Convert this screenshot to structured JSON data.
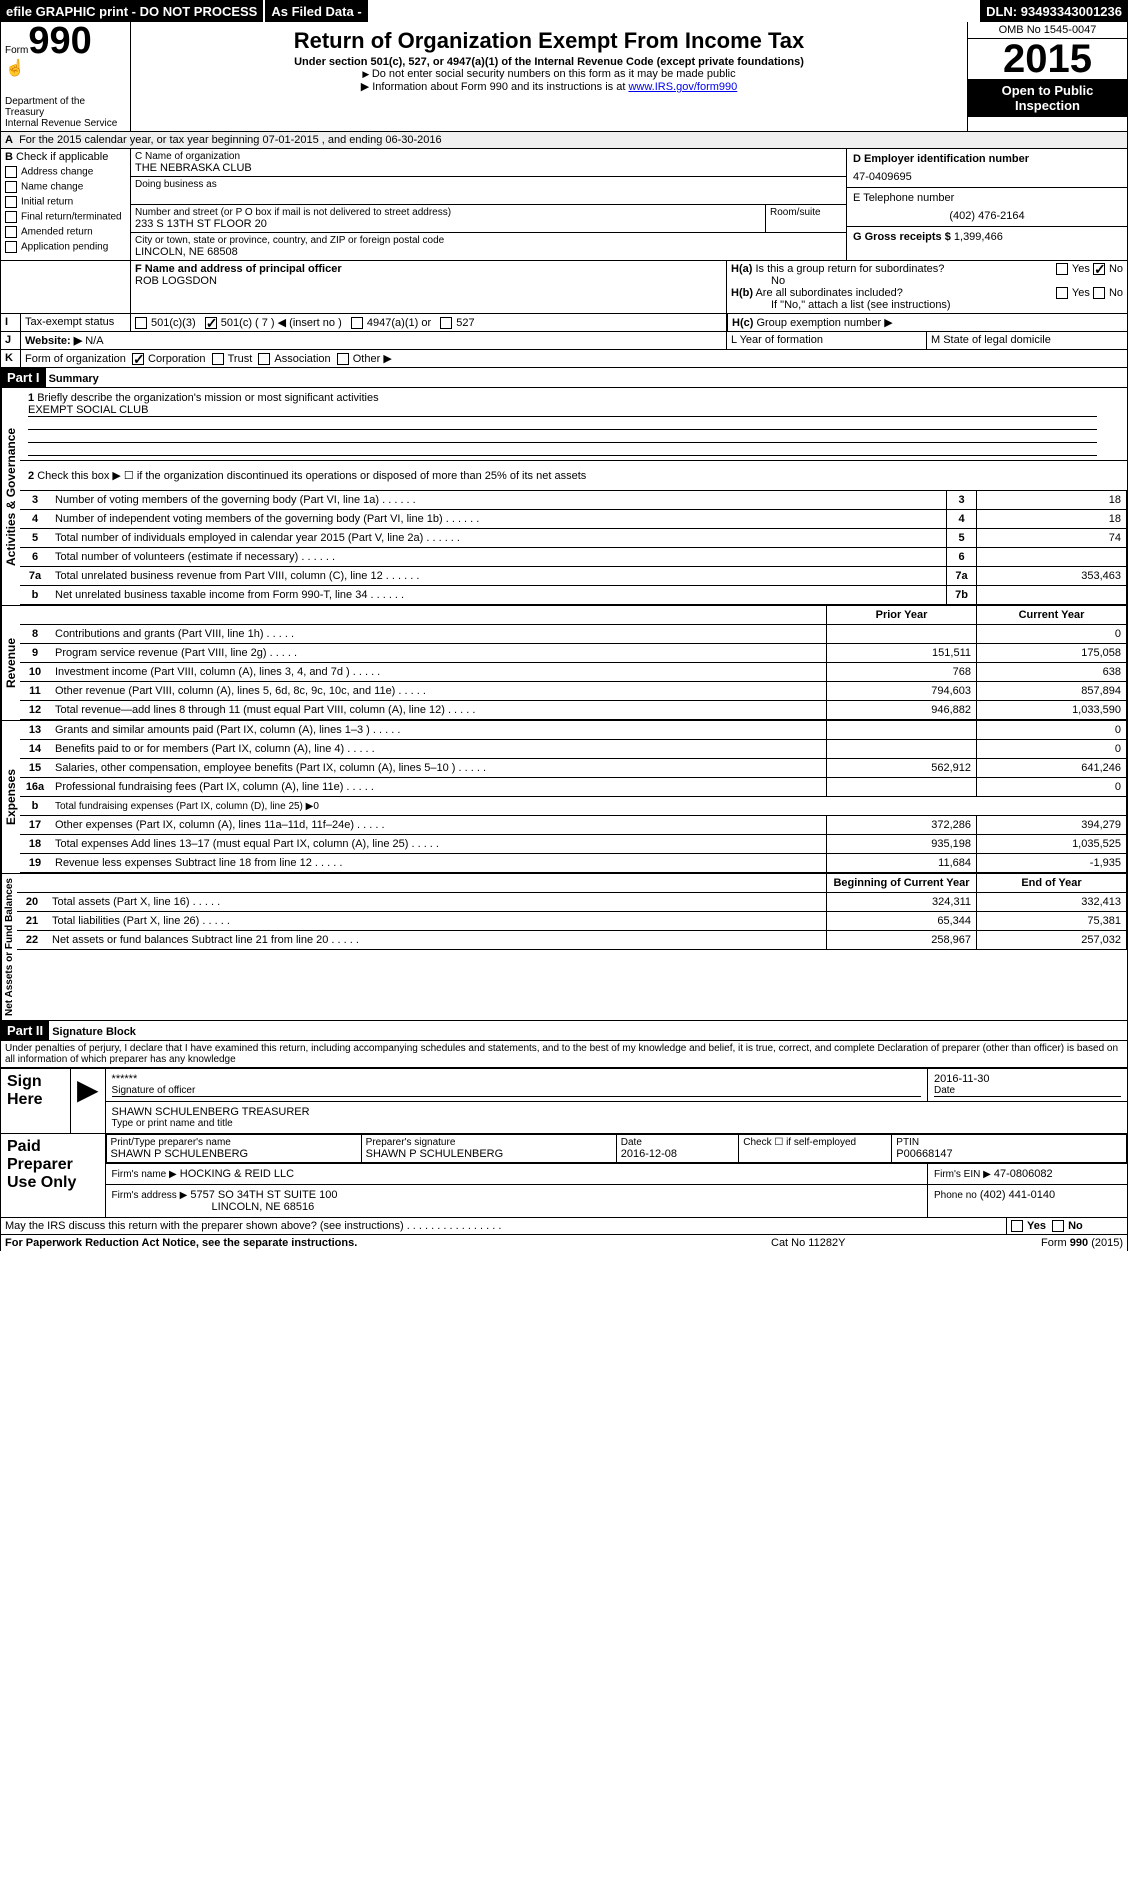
{
  "topbar": {
    "efile": "efile GRAPHIC print - DO NOT PROCESS",
    "asfiled": "As Filed Data -",
    "dln_label": "DLN:",
    "dln": "93493343001236"
  },
  "header": {
    "form_label": "Form",
    "form_no": "990",
    "dept": "Department of the Treasury",
    "irs": "Internal Revenue Service",
    "title": "Return of Organization Exempt From Income Tax",
    "subtitle": "Under section 501(c), 527, or 4947(a)(1) of the Internal Revenue Code (except private foundations)",
    "note1": "Do not enter social security numbers on this form as it may be made public",
    "note2_pre": "Information about Form 990 and its instructions is at ",
    "note2_link": "www.IRS.gov/form990",
    "omb": "OMB No 1545-0047",
    "year": "2015",
    "open": "Open to Public Inspection"
  },
  "a": {
    "line": "For the 2015 calendar year, or tax year beginning 07-01-2015   , and ending 06-30-2016"
  },
  "b": {
    "label": "Check if applicable",
    "opts": [
      "Address change",
      "Name change",
      "Initial return",
      "Final return/terminated",
      "Amended return",
      "Application pending"
    ]
  },
  "c": {
    "name_label": "C  Name of organization",
    "name": "THE NEBRASKA CLUB",
    "dba_label": "Doing business as",
    "dba": "",
    "addr_label": "Number and street (or P O box if mail is not delivered to street address)",
    "room_label": "Room/suite",
    "addr": "233 S 13TH ST FLOOR 20",
    "city_label": "City or town, state or province, country, and ZIP or foreign postal code",
    "city": "LINCOLN, NE  68508"
  },
  "d": {
    "label": "D Employer identification number",
    "val": "47-0409695"
  },
  "e": {
    "label": "E Telephone number",
    "val": "(402) 476-2164"
  },
  "g": {
    "label": "G Gross receipts $",
    "val": "1,399,466"
  },
  "f": {
    "label": "F  Name and address of principal officer",
    "val": "ROB LOGSDON"
  },
  "h": {
    "a": "Is this a group return for subordinates?",
    "b": "Are all subordinates included?",
    "bnote": "If \"No,\" attach a list (see instructions)",
    "c": "Group exemption number ▶",
    "yes": "Yes",
    "no": "No",
    "ans_a": "No"
  },
  "i": {
    "label": "Tax-exempt status",
    "opts": [
      "501(c)(3)",
      "501(c) ( 7 ) ◀ (insert no )",
      "4947(a)(1) or",
      "527"
    ],
    "checked": 1
  },
  "j": {
    "label": "Website: ▶",
    "val": "N/A"
  },
  "k": {
    "label": "Form of organization",
    "opts": [
      "Corporation",
      "Trust",
      "Association",
      "Other ▶"
    ],
    "checked": 0
  },
  "l": {
    "label": "L Year of formation"
  },
  "m": {
    "label": "M State of legal domicile"
  },
  "part1": {
    "title": "Part I",
    "sub": "Summary",
    "q1": "Briefly describe the organization's mission or most significant activities",
    "q1v": "EXEMPT SOCIAL CLUB",
    "q2": "Check this box ▶ ☐ if the organization discontinued its operations or disposed of more than 25% of its net assets",
    "rows_gov": [
      {
        "n": "3",
        "t": "Number of voting members of the governing body (Part VI, line 1a)",
        "k": "3",
        "v": "18"
      },
      {
        "n": "4",
        "t": "Number of independent voting members of the governing body (Part VI, line 1b)",
        "k": "4",
        "v": "18"
      },
      {
        "n": "5",
        "t": "Total number of individuals employed in calendar year 2015 (Part V, line 2a)",
        "k": "5",
        "v": "74"
      },
      {
        "n": "6",
        "t": "Total number of volunteers (estimate if necessary)",
        "k": "6",
        "v": ""
      },
      {
        "n": "7a",
        "t": "Total unrelated business revenue from Part VIII, column (C), line 12",
        "k": "7a",
        "v": "353,463"
      },
      {
        "n": "b",
        "t": "Net unrelated business taxable income from Form 990-T, line 34",
        "k": "7b",
        "v": ""
      }
    ],
    "hdr_prior": "Prior Year",
    "hdr_curr": "Current Year",
    "rows_rev": [
      {
        "n": "8",
        "t": "Contributions and grants (Part VIII, line 1h)",
        "p": "",
        "c": "0"
      },
      {
        "n": "9",
        "t": "Program service revenue (Part VIII, line 2g)",
        "p": "151,511",
        "c": "175,058"
      },
      {
        "n": "10",
        "t": "Investment income (Part VIII, column (A), lines 3, 4, and 7d )",
        "p": "768",
        "c": "638"
      },
      {
        "n": "11",
        "t": "Other revenue (Part VIII, column (A), lines 5, 6d, 8c, 9c, 10c, and 11e)",
        "p": "794,603",
        "c": "857,894"
      },
      {
        "n": "12",
        "t": "Total revenue—add lines 8 through 11 (must equal Part VIII, column (A), line 12)",
        "p": "946,882",
        "c": "1,033,590"
      }
    ],
    "rows_exp": [
      {
        "n": "13",
        "t": "Grants and similar amounts paid (Part IX, column (A), lines 1–3 )",
        "p": "",
        "c": "0"
      },
      {
        "n": "14",
        "t": "Benefits paid to or for members (Part IX, column (A), line 4)",
        "p": "",
        "c": "0"
      },
      {
        "n": "15",
        "t": "Salaries, other compensation, employee benefits (Part IX, column (A), lines 5–10 )",
        "p": "562,912",
        "c": "641,246"
      },
      {
        "n": "16a",
        "t": "Professional fundraising fees (Part IX, column (A), line 11e)",
        "p": "",
        "c": "0"
      },
      {
        "n": "b",
        "t": "Total fundraising expenses (Part IX, column (D), line 25) ▶0",
        "p": "—",
        "c": "—"
      },
      {
        "n": "17",
        "t": "Other expenses (Part IX, column (A), lines 11a–11d, 11f–24e)",
        "p": "372,286",
        "c": "394,279"
      },
      {
        "n": "18",
        "t": "Total expenses Add lines 13–17 (must equal Part IX, column (A), line 25)",
        "p": "935,198",
        "c": "1,035,525"
      },
      {
        "n": "19",
        "t": "Revenue less expenses Subtract line 18 from line 12",
        "p": "11,684",
        "c": "-1,935"
      }
    ],
    "hdr_boy": "Beginning of Current Year",
    "hdr_eoy": "End of Year",
    "rows_bal": [
      {
        "n": "20",
        "t": "Total assets (Part X, line 16)",
        "p": "324,311",
        "c": "332,413"
      },
      {
        "n": "21",
        "t": "Total liabilities (Part X, line 26)",
        "p": "65,344",
        "c": "75,381"
      },
      {
        "n": "22",
        "t": "Net assets or fund balances Subtract line 21 from line 20",
        "p": "258,967",
        "c": "257,032"
      }
    ],
    "vlabels": {
      "gov": "Activities & Governance",
      "rev": "Revenue",
      "exp": "Expenses",
      "bal": "Net Assets or Fund Balances"
    }
  },
  "part2": {
    "title": "Part II",
    "sub": "Signature Block",
    "perjury": "Under penalties of perjury, I declare that I have examined this return, including accompanying schedules and statements, and to the best of my knowledge and belief, it is true, correct, and complete Declaration of preparer (other than officer) is based on all information of which preparer has any knowledge",
    "sign_here": "Sign Here",
    "sig_stars": "******",
    "sig_label": "Signature of officer",
    "sig_date": "2016-11-30",
    "date_label": "Date",
    "name": "SHAWN SCHULENBERG TREASURER",
    "name_label": "Type or print name and title",
    "paid": "Paid Preparer Use Only",
    "prep_name_label": "Print/Type preparer's name",
    "prep_name": "SHAWN P SCHULENBERG",
    "prep_sig_label": "Preparer's signature",
    "prep_sig": "SHAWN P SCHULENBERG",
    "prep_date_label": "Date",
    "prep_date": "2016-12-08",
    "self_emp": "Check ☐ if self-employed",
    "ptin_label": "PTIN",
    "ptin": "P00668147",
    "firm_name_label": "Firm's name    ▶",
    "firm_name": "HOCKING & REID LLC",
    "firm_ein_label": "Firm's EIN ▶",
    "firm_ein": "47-0806082",
    "firm_addr_label": "Firm's address ▶",
    "firm_addr": "5757 SO 34TH ST SUITE 100",
    "firm_addr2": "LINCOLN, NE  68516",
    "phone_label": "Phone no",
    "phone": "(402) 441-0140",
    "discuss": "May the IRS discuss this return with the preparer shown above? (see instructions)",
    "yes": "Yes",
    "no": "No"
  },
  "footer": {
    "left": "For Paperwork Reduction Act Notice, see the separate instructions.",
    "mid": "Cat No 11282Y",
    "right": "Form 990 (2015)"
  }
}
